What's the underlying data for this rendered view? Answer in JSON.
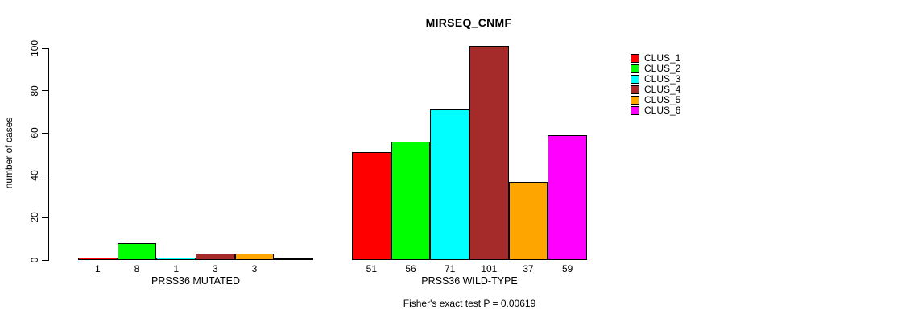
{
  "chart_data": {
    "type": "bar",
    "title": "MIRSEQ_CNMF",
    "ylabel": "number of cases",
    "xlabel": "",
    "ylim": [
      0,
      100
    ],
    "yticks": [
      0,
      20,
      40,
      60,
      80,
      100
    ],
    "grid": false,
    "legend_position": "right",
    "caption": "Fisher's exact test P = 0.00619",
    "clusters": [
      {
        "name": "CLUS_1",
        "color": "#FF0000"
      },
      {
        "name": "CLUS_2",
        "color": "#00FF00"
      },
      {
        "name": "CLUS_3",
        "color": "#00FFFF"
      },
      {
        "name": "CLUS_4",
        "color": "#A52A2A"
      },
      {
        "name": "CLUS_5",
        "color": "#FFA500"
      },
      {
        "name": "CLUS_6",
        "color": "#FF00FF"
      }
    ],
    "groups": [
      {
        "label": "PRSS36 MUTATED",
        "values": [
          1,
          8,
          1,
          3,
          3,
          0
        ],
        "bar_labels": [
          "1",
          "8",
          "1",
          "3",
          "3",
          ""
        ]
      },
      {
        "label": "PRSS36 WILD-TYPE",
        "values": [
          51,
          56,
          71,
          101,
          37,
          59
        ],
        "bar_labels": [
          "51",
          "56",
          "71",
          "101",
          "37",
          "59"
        ]
      }
    ]
  }
}
